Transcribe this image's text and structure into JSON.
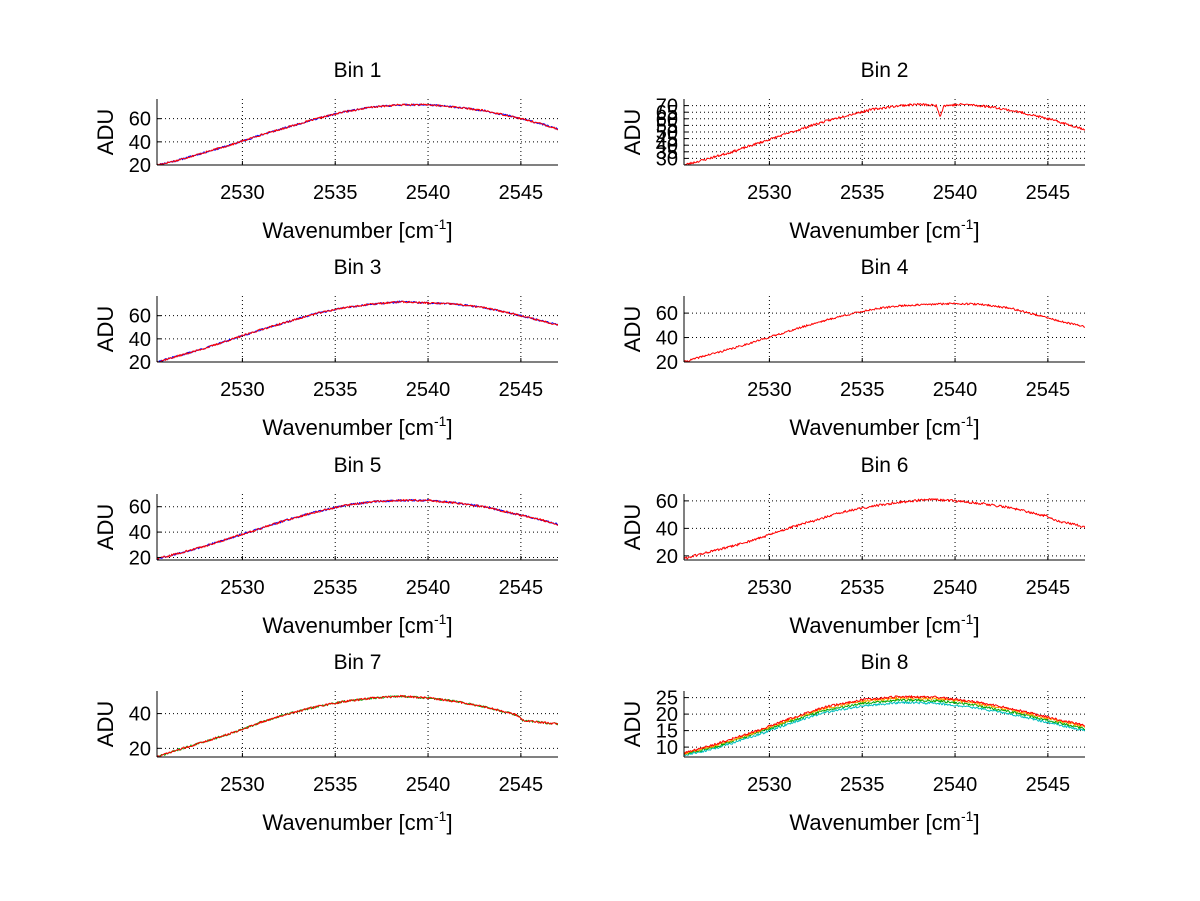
{
  "figure": {
    "background": "#ffffff"
  },
  "chart_data": [
    {
      "type": "line",
      "title": "Bin 1",
      "xlabel": "Wavenumber [cm",
      "xlabel_superscript": "-1",
      "xlabel_suffix": "]",
      "ylabel": "ADU",
      "xlim": [
        2525.4,
        2547
      ],
      "ylim": [
        20,
        77
      ],
      "xticks": [
        2530,
        2535,
        2540,
        2545
      ],
      "yticks": [
        20,
        40,
        60
      ],
      "grid": true,
      "series": [
        {
          "color": "#0000ff",
          "noise_seed": 11,
          "noise_amp": 0.8,
          "x": [
            2525.4,
            2526.5,
            2528,
            2529.5,
            2531,
            2532.5,
            2534,
            2535.5,
            2537,
            2538.5,
            2540,
            2541.5,
            2543,
            2544.5,
            2546,
            2547
          ],
          "y": [
            20,
            24,
            31,
            38,
            46,
            53,
            60,
            66,
            70,
            72,
            72,
            70,
            67,
            62,
            56,
            51
          ]
        },
        {
          "color": "#ff0000",
          "noise_seed": 17,
          "noise_amp": 0.8,
          "x": [
            2525.4,
            2526.5,
            2528,
            2529.5,
            2531,
            2532.5,
            2534,
            2535.5,
            2537,
            2538.5,
            2540,
            2541.5,
            2543,
            2544.5,
            2546,
            2547
          ],
          "y": [
            20,
            24,
            31,
            38,
            46,
            53,
            60,
            66,
            70,
            72,
            72,
            70,
            67,
            62,
            56,
            51
          ]
        }
      ]
    },
    {
      "type": "line",
      "title": "Bin 2",
      "xlabel": "Wavenumber [cm",
      "xlabel_superscript": "-1",
      "xlabel_suffix": "]",
      "ylabel": "ADU",
      "xlim": [
        2525.4,
        2547
      ],
      "ylim": [
        25,
        75
      ],
      "xticks": [
        2530,
        2535,
        2540,
        2545
      ],
      "yticks": [
        30,
        35,
        40,
        45,
        50,
        55,
        60,
        65,
        70
      ],
      "yticklabels": [
        "30",
        "35",
        "40",
        "45",
        "50",
        "55",
        "60",
        "65",
        "70"
      ],
      "grid": true,
      "series": [
        {
          "color": "#ff0000",
          "noise_seed": 23,
          "noise_amp": 0.9,
          "x": [
            2525.4,
            2526.5,
            2528,
            2529.5,
            2531,
            2532.5,
            2534,
            2535.5,
            2537,
            2538,
            2539,
            2539.2,
            2539.4,
            2540.5,
            2542,
            2543.5,
            2545,
            2546,
            2547
          ],
          "y": [
            25,
            29,
            35,
            42,
            49,
            56,
            62,
            67,
            70,
            71,
            70,
            62,
            70,
            71,
            69,
            65,
            60,
            56,
            52
          ]
        }
      ]
    },
    {
      "type": "line",
      "title": "Bin 3",
      "xlabel": "Wavenumber [cm",
      "xlabel_superscript": "-1",
      "xlabel_suffix": "]",
      "ylabel": "ADU",
      "xlim": [
        2525.4,
        2547
      ],
      "ylim": [
        20,
        77
      ],
      "xticks": [
        2530,
        2535,
        2540,
        2545
      ],
      "yticks": [
        20,
        40,
        60
      ],
      "grid": true,
      "series": [
        {
          "color": "#0000ff",
          "noise_seed": 31,
          "noise_amp": 0.8,
          "x": [
            2525.4,
            2526.5,
            2528,
            2529.5,
            2531,
            2532.5,
            2534,
            2535.5,
            2537,
            2538.5,
            2540,
            2541.5,
            2543,
            2544.5,
            2546,
            2547
          ],
          "y": [
            20,
            25,
            32,
            40,
            48,
            55,
            62,
            67,
            70,
            72,
            71,
            70,
            67,
            62,
            56,
            52
          ]
        },
        {
          "color": "#ff0000",
          "noise_seed": 37,
          "noise_amp": 0.8,
          "x": [
            2525.4,
            2526.5,
            2528,
            2529.5,
            2531,
            2532.5,
            2534,
            2535.5,
            2537,
            2538.5,
            2540,
            2541.5,
            2543,
            2544.5,
            2546,
            2547
          ],
          "y": [
            20,
            25,
            32,
            40,
            48,
            55,
            62,
            67,
            70,
            72,
            71,
            70,
            67,
            62,
            56,
            52
          ]
        }
      ]
    },
    {
      "type": "line",
      "title": "Bin 4",
      "xlabel": "Wavenumber [cm",
      "xlabel_superscript": "-1",
      "xlabel_suffix": "]",
      "ylabel": "ADU",
      "xlim": [
        2525.4,
        2547
      ],
      "ylim": [
        20,
        74
      ],
      "xticks": [
        2530,
        2535,
        2540,
        2545
      ],
      "yticks": [
        20,
        40,
        60
      ],
      "grid": true,
      "series": [
        {
          "color": "#ff0000",
          "noise_seed": 41,
          "noise_amp": 0.8,
          "x": [
            2525.4,
            2526.5,
            2528,
            2529.5,
            2531,
            2532.5,
            2534,
            2535.5,
            2537,
            2538.5,
            2540,
            2541.5,
            2543,
            2544.5,
            2546,
            2547
          ],
          "y": [
            20,
            25,
            31,
            38,
            45,
            52,
            58,
            63,
            66,
            67,
            68,
            67,
            64,
            58,
            52,
            49
          ]
        }
      ]
    },
    {
      "type": "line",
      "title": "Bin 5",
      "xlabel": "Wavenumber [cm",
      "xlabel_superscript": "-1",
      "xlabel_suffix": "]",
      "ylabel": "ADU",
      "xlim": [
        2525.4,
        2547
      ],
      "ylim": [
        18,
        70
      ],
      "xticks": [
        2530,
        2535,
        2540,
        2545
      ],
      "yticks": [
        20,
        40,
        60
      ],
      "grid": true,
      "series": [
        {
          "color": "#0000ff",
          "noise_seed": 53,
          "noise_amp": 0.8,
          "x": [
            2525.4,
            2526.5,
            2528,
            2529.5,
            2531,
            2532.5,
            2534,
            2535.5,
            2537,
            2538.5,
            2540,
            2541.5,
            2543,
            2544.5,
            2546,
            2547
          ],
          "y": [
            19,
            23,
            29,
            36,
            43,
            50,
            56,
            61,
            64,
            65,
            65,
            63,
            60,
            55,
            50,
            46
          ]
        },
        {
          "color": "#ff0000",
          "noise_seed": 59,
          "noise_amp": 0.8,
          "x": [
            2525.4,
            2526.5,
            2528,
            2529.5,
            2531,
            2532.5,
            2534,
            2535.5,
            2537,
            2538.5,
            2540,
            2541.5,
            2543,
            2544.5,
            2546,
            2547
          ],
          "y": [
            19,
            23,
            29,
            36,
            43,
            50,
            56,
            61,
            64,
            65,
            65,
            63,
            60,
            55,
            50,
            46
          ]
        }
      ]
    },
    {
      "type": "line",
      "title": "Bin 6",
      "xlabel": "Wavenumber [cm",
      "xlabel_superscript": "-1",
      "xlabel_suffix": "]",
      "ylabel": "ADU",
      "xlim": [
        2525.4,
        2547
      ],
      "ylim": [
        17,
        65
      ],
      "xticks": [
        2530,
        2535,
        2540,
        2545
      ],
      "yticks": [
        20,
        40,
        60
      ],
      "grid": true,
      "series": [
        {
          "color": "#ff0000",
          "noise_seed": 61,
          "noise_amp": 0.9,
          "x": [
            2525.4,
            2526.5,
            2528,
            2529.5,
            2531,
            2532.5,
            2534,
            2535.5,
            2537,
            2538.5,
            2540,
            2541.5,
            2543,
            2544.5,
            2545,
            2545.3,
            2546,
            2547
          ],
          "y": [
            18,
            22,
            27,
            33,
            40,
            46,
            52,
            56,
            59,
            61,
            60,
            58,
            55,
            50,
            49,
            46,
            44,
            41
          ]
        }
      ]
    },
    {
      "type": "line",
      "title": "Bin 7",
      "xlabel": "Wavenumber [cm",
      "xlabel_superscript": "-1",
      "xlabel_suffix": "]",
      "ylabel": "ADU",
      "xlim": [
        2525.4,
        2547
      ],
      "ylim": [
        15,
        53
      ],
      "xticks": [
        2530,
        2535,
        2540,
        2545
      ],
      "yticks": [
        20,
        40
      ],
      "grid": true,
      "series": [
        {
          "color": "#00aa00",
          "noise_seed": 71,
          "noise_amp": 0.6,
          "x": [
            2525.4,
            2526.5,
            2528,
            2529.5,
            2531,
            2532.5,
            2534,
            2535.5,
            2537,
            2538.5,
            2540,
            2541.5,
            2543,
            2544.5,
            2544.8,
            2545.1,
            2546,
            2547
          ],
          "y": [
            15,
            19,
            24,
            29,
            35,
            40,
            44,
            47,
            49,
            50,
            49,
            47,
            44,
            40,
            39,
            36,
            35,
            34
          ]
        },
        {
          "color": "#ff0000",
          "noise_seed": 73,
          "noise_amp": 0.6,
          "x": [
            2525.4,
            2526.5,
            2528,
            2529.5,
            2531,
            2532.5,
            2534,
            2535.5,
            2537,
            2538.5,
            2540,
            2541.5,
            2543,
            2544.5,
            2544.8,
            2545.1,
            2546,
            2547
          ],
          "y": [
            15,
            19,
            24,
            29,
            35,
            40,
            44,
            47,
            49,
            50,
            49,
            47,
            44,
            40,
            39,
            36,
            35,
            34
          ]
        }
      ]
    },
    {
      "type": "line",
      "title": "Bin 8",
      "xlabel": "Wavenumber [cm",
      "xlabel_superscript": "-1",
      "xlabel_suffix": "]",
      "ylabel": "ADU",
      "xlim": [
        2525.4,
        2547
      ],
      "ylim": [
        7,
        27
      ],
      "xticks": [
        2530,
        2535,
        2540,
        2545
      ],
      "yticks": [
        10,
        15,
        20,
        25
      ],
      "grid": true,
      "series": [
        {
          "color": "#00bfbf",
          "noise_seed": 81,
          "noise_amp": 0.35,
          "x": [
            2525.4,
            2527,
            2529,
            2531,
            2533,
            2535,
            2537,
            2539,
            2541,
            2543,
            2545,
            2547
          ],
          "y": [
            7.5,
            9.5,
            13,
            17,
            20.5,
            22.5,
            23.5,
            23.3,
            22,
            20,
            17.5,
            15
          ]
        },
        {
          "color": "#00aa00",
          "noise_seed": 83,
          "noise_amp": 0.35,
          "x": [
            2525.4,
            2527,
            2529,
            2531,
            2533,
            2535,
            2537,
            2539,
            2541,
            2543,
            2545,
            2547
          ],
          "y": [
            7.8,
            10,
            13.6,
            17.6,
            21.2,
            23.3,
            24.3,
            24.1,
            22.8,
            20.7,
            18.1,
            15.6
          ]
        },
        {
          "color": "#ffa000",
          "noise_seed": 85,
          "noise_amp": 0.35,
          "x": [
            2525.4,
            2527,
            2529,
            2531,
            2533,
            2535,
            2537,
            2539,
            2541,
            2543,
            2545,
            2547
          ],
          "y": [
            8,
            10.4,
            14,
            18.1,
            21.8,
            23.9,
            24.9,
            24.7,
            23.4,
            21.3,
            18.7,
            16.1
          ]
        },
        {
          "color": "#ff0000",
          "noise_seed": 87,
          "noise_amp": 0.35,
          "x": [
            2525.4,
            2527,
            2529,
            2531,
            2533,
            2535,
            2537,
            2539,
            2541,
            2543,
            2545,
            2547
          ],
          "y": [
            8.2,
            10.7,
            14.3,
            18.4,
            22.2,
            24.3,
            25.3,
            25.1,
            23.8,
            21.7,
            19.1,
            16.5
          ]
        }
      ]
    }
  ]
}
